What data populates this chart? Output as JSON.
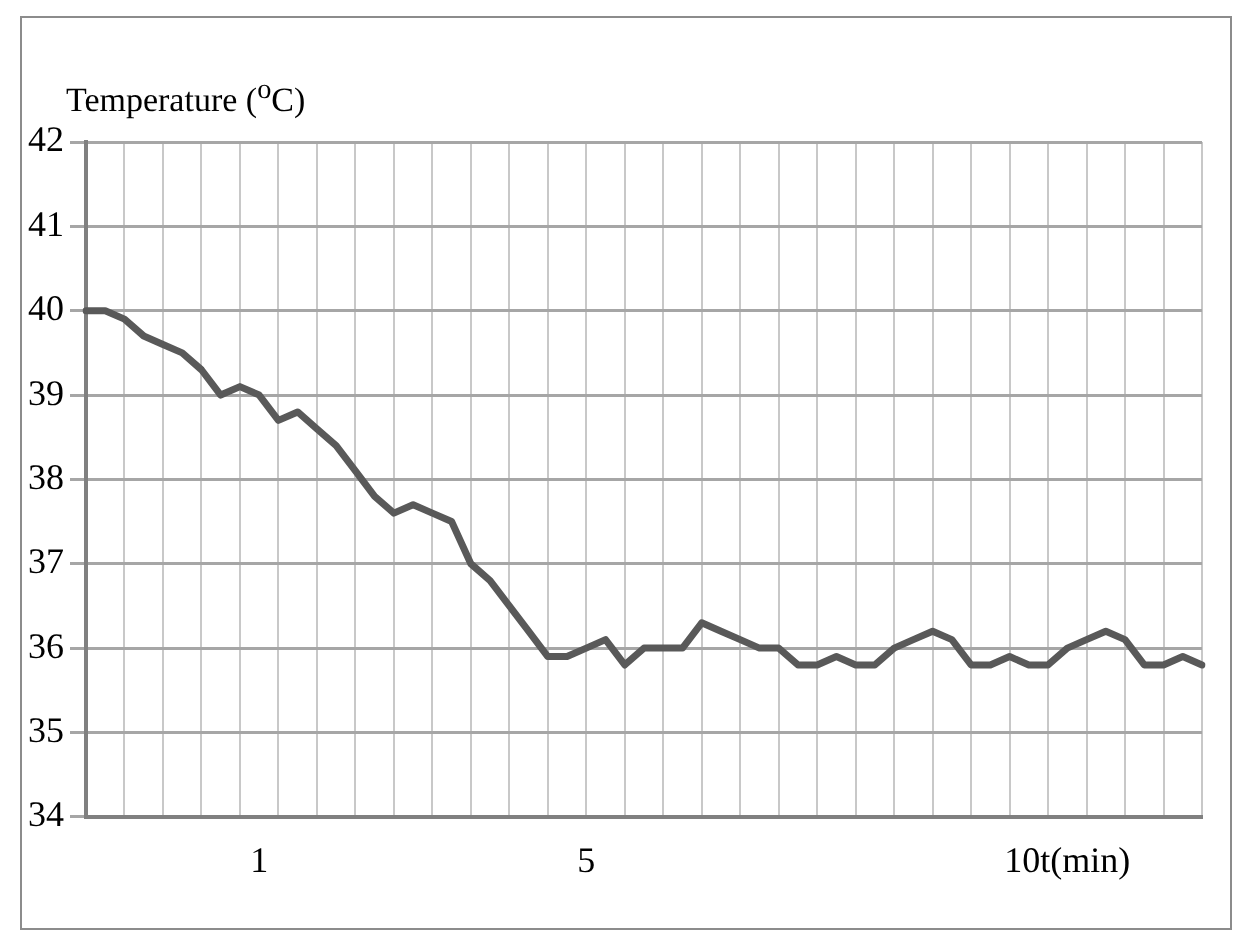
{
  "chart_data": {
    "type": "line",
    "ylabel": "Temperature ($^{o}$C)",
    "categories": [
      null,
      null,
      null,
      null,
      null,
      null,
      null,
      null,
      null,
      "1",
      null,
      null,
      null,
      null,
      null,
      null,
      null,
      null,
      null,
      null,
      null,
      null,
      null,
      null,
      null,
      null,
      "5",
      null,
      null,
      null,
      null,
      null,
      null,
      null,
      null,
      null,
      null,
      null,
      null,
      null,
      null,
      null,
      null,
      null,
      null,
      null,
      null,
      null,
      null,
      null,
      null,
      "10t(min)",
      null,
      null,
      null,
      null,
      null,
      null,
      null
    ],
    "series": [
      {
        "color": "#595959",
        "values": [
          40.0,
          40.0,
          39.9,
          39.7,
          39.6,
          39.5,
          39.3,
          39.0,
          39.1,
          39.0,
          38.7,
          38.8,
          38.6,
          38.4,
          38.1,
          37.8,
          37.6,
          37.7,
          37.6,
          37.5,
          37.0,
          36.8,
          36.5,
          36.2,
          35.9,
          35.9,
          36.0,
          36.1,
          35.8,
          36.0,
          36.0,
          36.0,
          36.3,
          36.2,
          36.1,
          36.0,
          36.0,
          35.8,
          35.8,
          35.9,
          35.8,
          35.8,
          36.0,
          36.1,
          36.2,
          36.1,
          35.8,
          35.8,
          35.9,
          35.8,
          35.8,
          36.0,
          36.1,
          36.2,
          36.1,
          35.8,
          35.8,
          35.9,
          35.8
        ]
      }
    ],
    "ylim": [
      34,
      42
    ],
    "yticks": [
      34,
      35,
      36,
      37,
      38,
      39,
      40,
      41,
      42
    ],
    "grid": true,
    "legend": false,
    "marker": "none",
    "line_style": "solid"
  }
}
